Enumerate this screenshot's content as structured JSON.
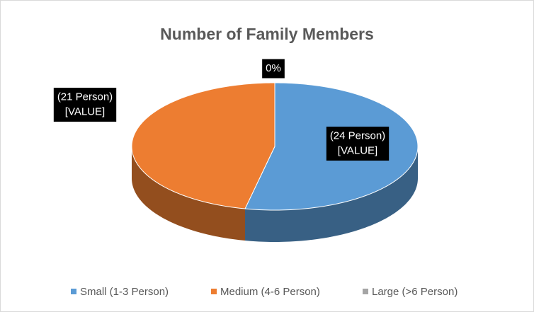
{
  "chart_data": {
    "type": "pie",
    "title": "Number of Family Members",
    "categories": [
      "Small (1-3 Person)",
      "Medium (4-6 Person)",
      "Large (>6 Person)"
    ],
    "values": [
      24,
      21,
      0
    ],
    "value_labels": [
      [
        "(24 Person)",
        "[VALUE]"
      ],
      [
        "(21 Person)",
        "[VALUE]"
      ],
      [
        "0%"
      ]
    ],
    "colors": [
      "#5b9bd5",
      "#ed7d31",
      "#a5a5a5"
    ],
    "legend": "bottom",
    "three_d": true
  }
}
